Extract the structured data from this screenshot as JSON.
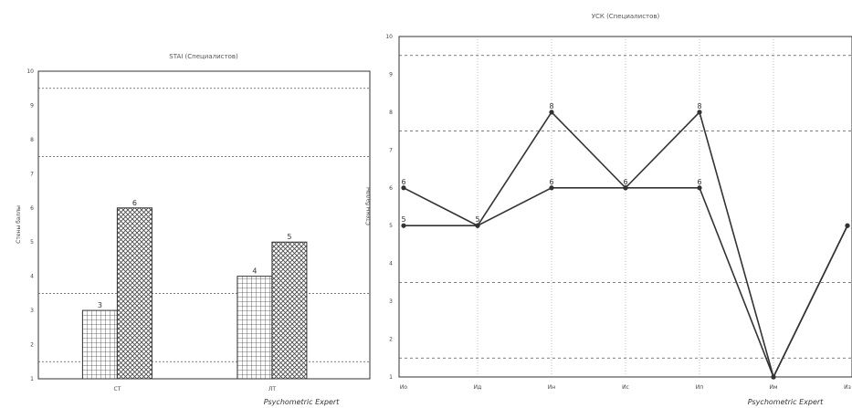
{
  "chart_data": [
    {
      "type": "bar",
      "title": "STAI (Специалистов)",
      "ylabel": "Стены баллы",
      "categories": [
        "СТ",
        "ЛТ"
      ],
      "series": [
        {
          "pattern": "grid",
          "values": [
            3,
            4
          ]
        },
        {
          "pattern": "crosshatch",
          "values": [
            6,
            5
          ]
        }
      ],
      "ylim": [
        1,
        10
      ],
      "yticks": [
        1,
        2,
        3,
        4,
        5,
        6,
        7,
        8,
        9,
        10
      ],
      "reference_lines": [
        1.5,
        3.5,
        7.5,
        9.5
      ],
      "grid": true,
      "footer": "Psychometric Expert"
    },
    {
      "type": "line",
      "title": "УСК (Специалистов)",
      "ylabel": "Стены баллы",
      "categories": [
        "Ио",
        "Ид",
        "Ин",
        "Ис",
        "Ип",
        "Им",
        "Из"
      ],
      "series": [
        {
          "values": [
            6,
            5,
            8,
            6,
            8,
            1,
            5
          ]
        },
        {
          "values": [
            5,
            5,
            6,
            6,
            6,
            1,
            5
          ]
        }
      ],
      "data_labels": [
        {
          "category": "Ио",
          "value": 6,
          "text": "6"
        },
        {
          "category": "Ио",
          "value": 5,
          "text": "5"
        },
        {
          "category": "Ид",
          "value": 5,
          "text": "5"
        },
        {
          "category": "Ин",
          "value": 8,
          "text": "8"
        },
        {
          "category": "Ин",
          "value": 6,
          "text": "6"
        },
        {
          "category": "Ис",
          "value": 6,
          "text": "6"
        },
        {
          "category": "Ип",
          "value": 8,
          "text": "8"
        },
        {
          "category": "Ип",
          "value": 6,
          "text": "6"
        }
      ],
      "ylim": [
        1,
        10
      ],
      "yticks": [
        1,
        2,
        3,
        4,
        5,
        6,
        7,
        8,
        9,
        10
      ],
      "reference_lines": [
        1.5,
        3.5,
        7.5,
        9.5
      ],
      "grid": true,
      "footer": "Psychometric Expert"
    }
  ]
}
